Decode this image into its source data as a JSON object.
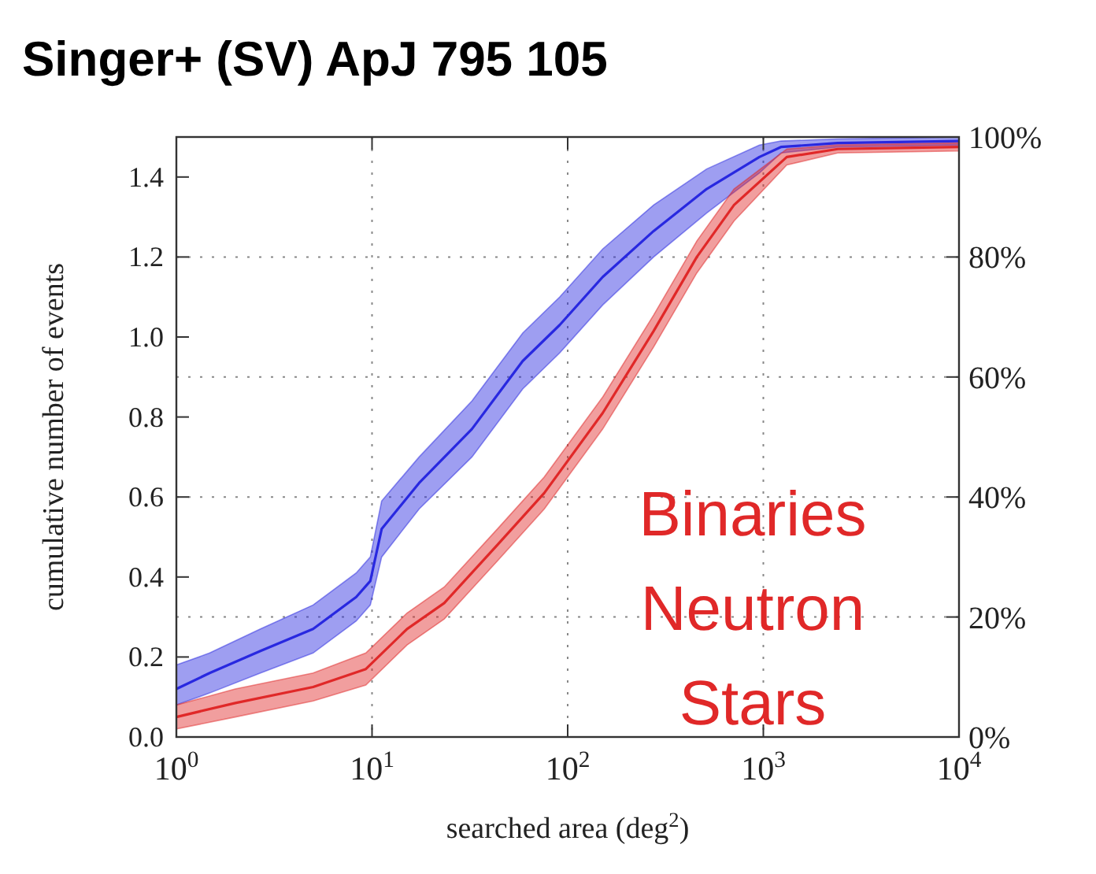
{
  "chart_data": {
    "type": "line",
    "title": "Singer+ (SV) ApJ 795 105",
    "xlabel": "searched area (deg$^{2}$)",
    "ylabel": "cumulative number of events",
    "log": "x",
    "grid": true,
    "marker": "none",
    "line_style": "solid",
    "xlim": [
      1,
      10000
    ],
    "xticks": [
      {
        "value": 1,
        "label": "10$^{0}$"
      },
      {
        "value": 10,
        "label": "10$^{1}$"
      },
      {
        "value": 100,
        "label": "10$^{2}$"
      },
      {
        "value": 1000,
        "label": "10$^{3}$"
      },
      {
        "value": 10000,
        "label": "10$^{4}$"
      }
    ],
    "ylim": [
      0,
      1.5
    ],
    "yticks": [
      {
        "value": 0,
        "label": "0.0"
      },
      {
        "value": 0.2,
        "label": "0.2"
      },
      {
        "value": 0.4,
        "label": "0.4"
      },
      {
        "value": 0.6,
        "label": "0.6"
      },
      {
        "value": 0.8,
        "label": "0.8"
      },
      {
        "value": 1.0,
        "label": "1.0"
      },
      {
        "value": 1.2,
        "label": "1.2"
      },
      {
        "value": 1.4,
        "label": "1.4"
      }
    ],
    "y2lim": [
      0,
      100
    ],
    "y2ticks": [
      {
        "value": 0,
        "label": "0%"
      },
      {
        "value": 20,
        "label": "20%"
      },
      {
        "value": 40,
        "label": "40%"
      },
      {
        "value": 60,
        "label": "60%"
      },
      {
        "value": 80,
        "label": "80%"
      },
      {
        "value": 100,
        "label": "100%"
      }
    ],
    "series": [
      {
        "color": "#2828e0",
        "x": [
          1,
          1.48,
          2.69,
          5.0,
          8.3,
          9.8,
          11.2,
          17.4,
          32.4,
          58.9,
          91,
          151,
          275,
          513,
          955,
          1230,
          2400,
          10000
        ],
        "values": [
          0.12,
          0.16,
          0.215,
          0.27,
          0.35,
          0.39,
          0.52,
          0.635,
          0.77,
          0.94,
          1.03,
          1.15,
          1.265,
          1.37,
          1.45,
          1.475,
          1.485,
          1.49
        ],
        "lower": [
          0.08,
          0.11,
          0.16,
          0.21,
          0.29,
          0.33,
          0.45,
          0.57,
          0.7,
          0.87,
          0.96,
          1.08,
          1.2,
          1.31,
          1.41,
          1.46,
          1.475,
          1.48
        ],
        "upper": [
          0.18,
          0.21,
          0.27,
          0.33,
          0.41,
          0.45,
          0.59,
          0.7,
          0.84,
          1.01,
          1.1,
          1.22,
          1.33,
          1.42,
          1.48,
          1.49,
          1.495,
          1.5
        ]
      },
      {
        "color": "#e02828",
        "x": [
          1,
          2,
          5,
          9.3,
          15.1,
          23.4,
          43.7,
          75.9,
          151,
          275,
          457,
          708,
          1318,
          2400,
          10000
        ],
        "values": [
          0.05,
          0.085,
          0.125,
          0.17,
          0.27,
          0.335,
          0.48,
          0.61,
          0.81,
          1.015,
          1.2,
          1.33,
          1.45,
          1.47,
          1.475
        ],
        "lower": [
          0.02,
          0.05,
          0.09,
          0.13,
          0.23,
          0.295,
          0.44,
          0.57,
          0.77,
          0.975,
          1.16,
          1.29,
          1.43,
          1.46,
          1.465
        ],
        "upper": [
          0.08,
          0.12,
          0.16,
          0.21,
          0.31,
          0.375,
          0.52,
          0.65,
          0.85,
          1.055,
          1.24,
          1.37,
          1.47,
          1.48,
          1.485
        ]
      }
    ],
    "annotations": [
      "Binaries\nNeutron\nStars"
    ]
  }
}
